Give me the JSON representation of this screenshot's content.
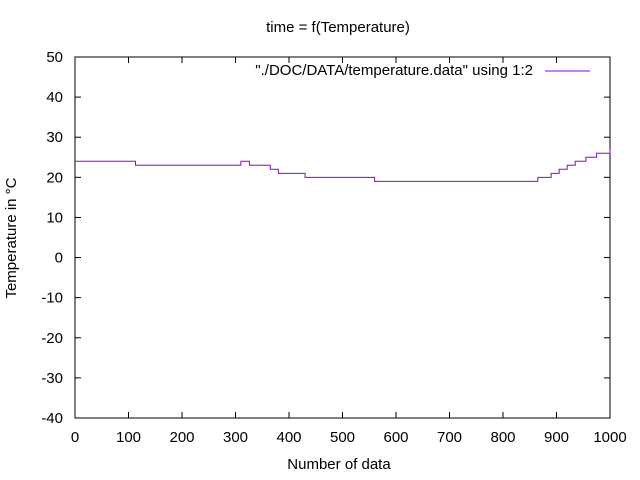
{
  "chart_data": {
    "type": "line",
    "title": "time = f(Temperature)",
    "xlabel": "Number of data",
    "ylabel": "Temperature in °C",
    "xlim": [
      0,
      1000
    ],
    "ylim": [
      -40,
      50
    ],
    "xticks": [
      0,
      100,
      200,
      300,
      400,
      500,
      600,
      700,
      800,
      900,
      1000
    ],
    "yticks": [
      -40,
      -30,
      -20,
      -10,
      0,
      10,
      20,
      30,
      40,
      50
    ],
    "grid": false,
    "legend_position": "top-right",
    "series": [
      {
        "name": "\"./DOC/DATA/temperature.data\" using 1:2",
        "color": "#9400d3",
        "step": true,
        "x": [
          0,
          113,
          305,
          310,
          322,
          326,
          365,
          380,
          430,
          560,
          865,
          890,
          905,
          920,
          935,
          955,
          975,
          998,
          1000
        ],
        "y": [
          24,
          23,
          23,
          24,
          24,
          23,
          22,
          21,
          20,
          19,
          20,
          21,
          22,
          23,
          24,
          25,
          26,
          26,
          27
        ]
      }
    ]
  }
}
